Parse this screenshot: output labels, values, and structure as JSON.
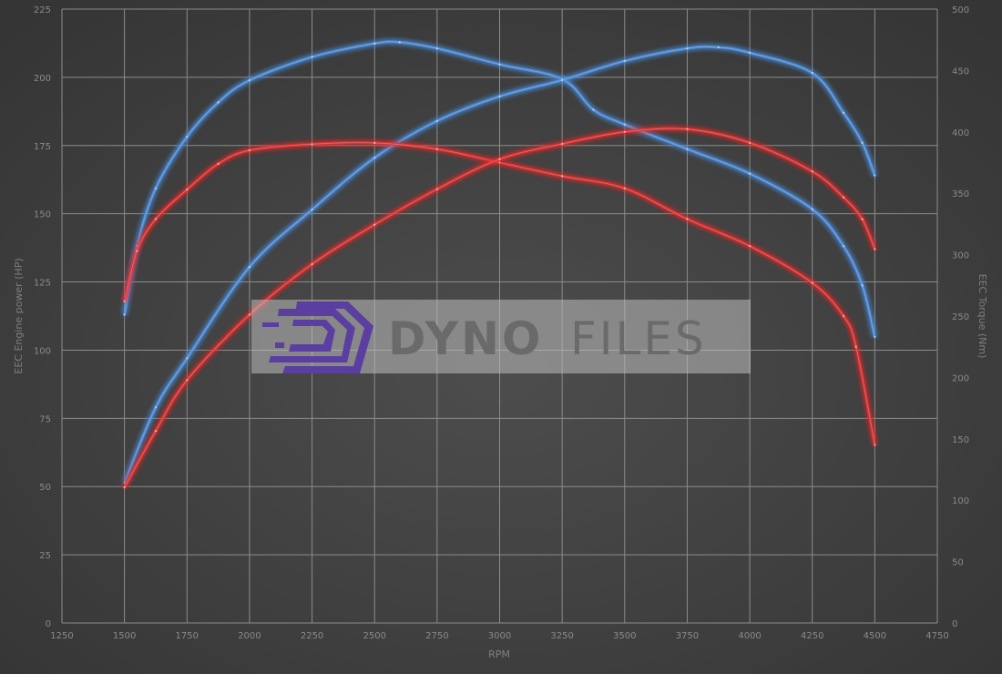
{
  "chart_data": {
    "type": "line",
    "title": "",
    "xlabel": "RPM",
    "ylabel_left": "EEC Engine power (HP)",
    "ylabel_right": "EEC Torque (Nm)",
    "xlim": [
      1250,
      4750
    ],
    "ylim_left": [
      0,
      225
    ],
    "ylim_right": [
      0,
      500
    ],
    "x_ticks": [
      1250,
      1500,
      1750,
      2000,
      2250,
      2500,
      2750,
      3000,
      3250,
      3500,
      3750,
      4000,
      4250,
      4500,
      4750
    ],
    "y_ticks_left": [
      0,
      25,
      50,
      75,
      100,
      125,
      150,
      175,
      200,
      225
    ],
    "y_ticks_right": [
      0,
      50,
      100,
      150,
      200,
      250,
      300,
      350,
      400,
      450,
      500
    ],
    "grid": true,
    "legend": "none",
    "series": [
      {
        "axis": "right",
        "color": "#4a90e2",
        "x": [
          1500,
          1550,
          1625,
          1750,
          1875,
          2000,
          2250,
          2500,
          2600,
          2750,
          3000,
          3250,
          3375,
          3500,
          3750,
          4000,
          4250,
          4375,
          4450,
          4500
        ],
        "y": [
          251,
          307,
          354,
          396,
          424,
          442,
          461,
          472,
          473,
          468,
          455,
          443,
          418,
          406,
          386,
          366,
          337,
          307,
          275,
          233
        ]
      },
      {
        "axis": "left",
        "color": "#4a90e2",
        "x": [
          1500,
          1625,
          1750,
          2000,
          2250,
          2500,
          2750,
          3000,
          3250,
          3500,
          3750,
          3875,
          4000,
          4250,
          4375,
          4450,
          4500
        ],
        "y": [
          51.4,
          79,
          97,
          130.5,
          151.5,
          170.5,
          184,
          193,
          199,
          206,
          210.6,
          211,
          209,
          201.6,
          187,
          176,
          164
        ]
      },
      {
        "axis": "right",
        "color": "#e53030",
        "x": [
          1500,
          1550,
          1625,
          1750,
          1875,
          2000,
          2250,
          2500,
          2750,
          3000,
          3250,
          3500,
          3750,
          4000,
          4250,
          4375,
          4425,
          4500
        ],
        "y": [
          262,
          303,
          329,
          353,
          374,
          385,
          390,
          391,
          386,
          375,
          364,
          354,
          329,
          307,
          277,
          250,
          225,
          145
        ]
      },
      {
        "axis": "left",
        "color": "#e53030",
        "x": [
          1500,
          1625,
          1750,
          2000,
          2250,
          2500,
          2750,
          3000,
          3250,
          3500,
          3750,
          4000,
          4250,
          4375,
          4450,
          4500
        ],
        "y": [
          49.7,
          70.4,
          89,
          113,
          131.5,
          146,
          159,
          170,
          175.6,
          180,
          181,
          176,
          165.5,
          156,
          148,
          137
        ]
      }
    ]
  },
  "watermark": {
    "brand_prefix": "DYNO",
    "brand_suffix": "FILES",
    "logo_color": "#5b3fa0"
  }
}
